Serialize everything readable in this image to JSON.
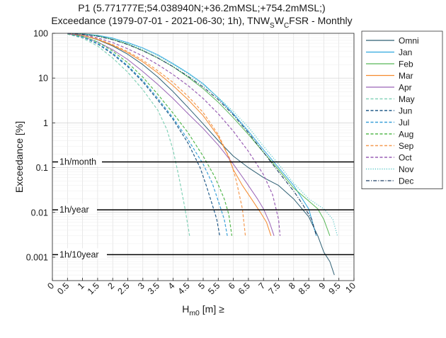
{
  "chart_data": {
    "type": "line",
    "title": {
      "line1": "P1 (5.771777E;54.038940N;+36.2mMSL;+754.2mMSL;)",
      "line2_pre": "Exceedance  (1979-07-01 - 2021-06-30; 1h), TNW",
      "line2_sub1": "S",
      "line2_mid": "W",
      "line2_sub2": "C",
      "line2_post": "FSR - Monthly"
    },
    "xlabel": {
      "main": "H",
      "sub": "m0",
      "rest": " [m] ≥"
    },
    "ylabel": "Exceedance [%]",
    "xlim": [
      0,
      10
    ],
    "ylim": [
      0.0003,
      100
    ],
    "yscale": "log",
    "grid": true,
    "legend_position": "outside-right",
    "xticks": [
      "0",
      "0.5",
      "1",
      "1.5",
      "2",
      "2.5",
      "3",
      "3.5",
      "4",
      "4.5",
      "5",
      "5.5",
      "6",
      "6.5",
      "7",
      "7.5",
      "8",
      "8.5",
      "9",
      "9.5",
      "10"
    ],
    "yticks": [
      {
        "value": 100,
        "label": "100"
      },
      {
        "value": 10,
        "label": "10"
      },
      {
        "value": 1,
        "label": "1"
      },
      {
        "value": 0.1,
        "label": "0.1"
      },
      {
        "value": 0.01,
        "label": "0.01"
      },
      {
        "value": 0.001,
        "label": "0.001"
      }
    ],
    "reference_lines": [
      {
        "label": "1h/month",
        "y": 0.134
      },
      {
        "label": "1h/year",
        "y": 0.0114
      },
      {
        "label": "1h/10year",
        "y": 0.00114
      }
    ],
    "series": [
      {
        "name": "Omni",
        "color": "#2e5f73",
        "dash": "solid",
        "width": 1.0,
        "x": [
          0.5,
          1,
          1.5,
          2,
          2.5,
          3,
          3.5,
          4,
          4.5,
          5,
          5.5,
          6,
          6.5,
          7,
          7.5,
          8,
          8.5,
          8.8,
          9,
          9.2,
          9.35
        ],
        "y": [
          99,
          90,
          72,
          52,
          34,
          20,
          10.5,
          5.0,
          2.2,
          0.95,
          0.4,
          0.18,
          0.1,
          0.06,
          0.04,
          0.02,
          0.008,
          0.003,
          0.0013,
          0.0008,
          0.0004
        ]
      },
      {
        "name": "Jan",
        "color": "#2ea7de",
        "dash": "solid",
        "width": 1.0,
        "x": [
          0.5,
          1,
          1.5,
          2,
          2.5,
          3,
          3.5,
          4,
          4.5,
          5,
          5.5,
          6,
          6.5,
          7,
          7.5,
          8,
          8.5,
          8.75
        ],
        "y": [
          100,
          97,
          90,
          78,
          62,
          47,
          33,
          21,
          13,
          7.5,
          3.6,
          1.6,
          0.65,
          0.25,
          0.1,
          0.04,
          0.012,
          0.003
        ]
      },
      {
        "name": "Feb",
        "color": "#58b857",
        "dash": "solid",
        "width": 1.0,
        "x": [
          0.5,
          1,
          1.5,
          2,
          2.5,
          3,
          3.5,
          4,
          4.5,
          5,
          5.5,
          6,
          6.5,
          7,
          7.5,
          8,
          8.5,
          8.8,
          9,
          9.2
        ],
        "y": [
          100,
          96,
          87,
          73,
          57,
          41,
          28,
          18,
          10.5,
          5.8,
          2.9,
          1.3,
          0.55,
          0.22,
          0.09,
          0.035,
          0.018,
          0.012,
          0.007,
          0.003
        ]
      },
      {
        "name": "Mar",
        "color": "#f58a2e",
        "dash": "solid",
        "width": 1.0,
        "x": [
          0.5,
          1,
          1.5,
          2,
          2.5,
          3,
          3.5,
          4,
          4.5,
          5,
          5.5,
          5.8,
          6.0,
          6.3,
          6.6,
          6.9,
          7.1,
          7.25
        ],
        "y": [
          99,
          90,
          73,
          54,
          37,
          23,
          13,
          6.8,
          3.3,
          1.45,
          0.5,
          0.2,
          0.09,
          0.04,
          0.02,
          0.01,
          0.006,
          0.003
        ]
      },
      {
        "name": "Apr",
        "color": "#9a63b6",
        "dash": "solid",
        "width": 1.0,
        "x": [
          0.5,
          1,
          1.5,
          2,
          2.5,
          3,
          3.5,
          4,
          4.5,
          5,
          5.5,
          6.0,
          6.4,
          6.8,
          7.0,
          7.2,
          7.35
        ],
        "y": [
          98,
          85,
          64,
          43,
          26,
          14,
          7.2,
          3.5,
          1.6,
          0.75,
          0.32,
          0.12,
          0.05,
          0.02,
          0.012,
          0.006,
          0.003
        ]
      },
      {
        "name": "May",
        "color": "#84d2b8",
        "dash": "dash",
        "width": 1.2,
        "x": [
          0.5,
          1,
          1.5,
          2,
          2.5,
          3,
          3.5,
          3.8,
          4.0,
          4.2,
          4.4,
          4.55
        ],
        "y": [
          96,
          78,
          52,
          28,
          13.5,
          5.5,
          1.9,
          0.7,
          0.25,
          0.06,
          0.012,
          0.003
        ]
      },
      {
        "name": "Jun",
        "color": "#245c8a",
        "dash": "dash",
        "width": 1.2,
        "x": [
          0.5,
          1,
          1.5,
          2,
          2.5,
          3,
          3.5,
          4,
          4.5,
          4.9,
          5.1,
          5.3,
          5.45,
          5.55
        ],
        "y": [
          97,
          82,
          58,
          34,
          18,
          8.2,
          3.2,
          1.2,
          0.35,
          0.1,
          0.04,
          0.015,
          0.007,
          0.003
        ]
      },
      {
        "name": "Jul",
        "color": "#3aa0d8",
        "dash": "dash",
        "width": 1.2,
        "x": [
          0.5,
          1,
          1.5,
          2,
          2.5,
          3,
          3.5,
          4,
          4.5,
          5.0,
          5.3,
          5.5,
          5.7,
          5.8
        ],
        "y": [
          97,
          83,
          60,
          36,
          19,
          8.8,
          3.5,
          1.3,
          0.42,
          0.12,
          0.045,
          0.018,
          0.007,
          0.003
        ]
      },
      {
        "name": "Aug",
        "color": "#55b84f",
        "dash": "dash",
        "width": 1.2,
        "x": [
          0.5,
          1,
          1.5,
          2,
          2.5,
          3,
          3.5,
          4,
          4.5,
          5.0,
          5.4,
          5.7,
          5.85,
          5.95
        ],
        "y": [
          98,
          86,
          64,
          40,
          22,
          10.5,
          4.3,
          1.65,
          0.6,
          0.18,
          0.06,
          0.02,
          0.009,
          0.003
        ]
      },
      {
        "name": "Sep",
        "color": "#f59a50",
        "dash": "dash",
        "width": 1.2,
        "x": [
          0.5,
          1,
          1.5,
          2,
          2.5,
          3,
          3.5,
          4,
          4.5,
          5,
          5.5,
          5.9,
          6.1,
          6.3,
          6.4
        ],
        "y": [
          99,
          91,
          75,
          56,
          39,
          25,
          14.5,
          8.0,
          3.9,
          1.7,
          0.55,
          0.15,
          0.05,
          0.012,
          0.003
        ]
      },
      {
        "name": "Oct",
        "color": "#9a5fb5",
        "dash": "dash",
        "width": 1.2,
        "x": [
          0.5,
          1,
          1.5,
          2,
          2.5,
          3,
          3.5,
          4,
          4.5,
          5,
          5.5,
          6,
          6.5,
          7,
          7.3,
          7.5,
          7.55
        ],
        "y": [
          99,
          93,
          79,
          62,
          45,
          31,
          20,
          12,
          6.8,
          3.5,
          1.6,
          0.65,
          0.23,
          0.07,
          0.025,
          0.007,
          0.003
        ]
      },
      {
        "name": "Nov",
        "color": "#5ec8c8",
        "dash": "dot",
        "width": 1.2,
        "x": [
          0.5,
          1,
          1.5,
          2,
          2.5,
          3,
          3.5,
          4,
          4.5,
          5,
          5.5,
          6,
          6.5,
          7,
          7.5,
          8,
          8.5,
          9,
          9.3,
          9.45
        ],
        "y": [
          100,
          96,
          88,
          75,
          59,
          44,
          31,
          20,
          12.5,
          7.0,
          3.7,
          1.8,
          0.8,
          0.3,
          0.12,
          0.045,
          0.02,
          0.012,
          0.007,
          0.003
        ]
      },
      {
        "name": "Dec",
        "color": "#1f3f63",
        "dash": "dashdot",
        "width": 1.1,
        "x": [
          0.5,
          1,
          1.5,
          2,
          2.5,
          3,
          3.5,
          4,
          4.5,
          5,
          5.5,
          6,
          6.5,
          7,
          7.5,
          8,
          8.3,
          8.6,
          8.75
        ],
        "y": [
          100,
          95,
          86,
          72,
          56,
          41,
          28,
          18,
          11,
          6.3,
          3.3,
          1.5,
          0.6,
          0.22,
          0.08,
          0.03,
          0.015,
          0.007,
          0.003
        ]
      }
    ]
  }
}
